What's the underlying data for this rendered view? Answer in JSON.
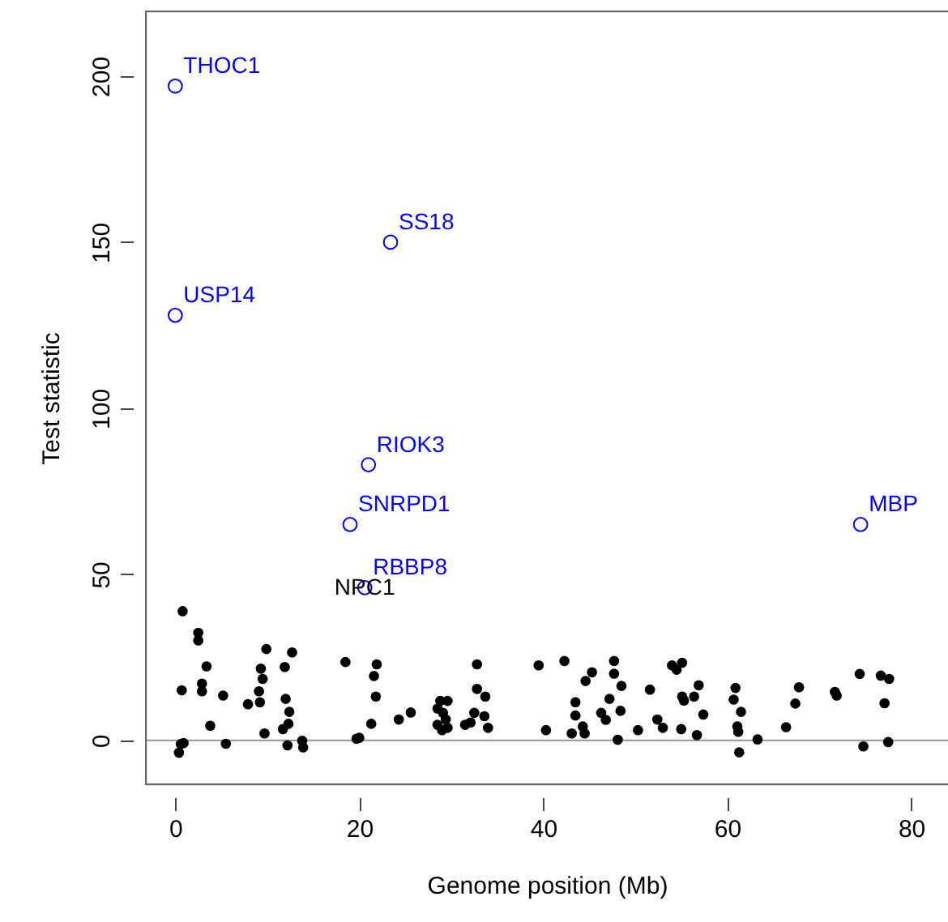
{
  "chart_data": {
    "type": "scatter",
    "xlabel": "Genome position (Mb)",
    "ylabel": "Test statistic",
    "xlim": [
      -3.2,
      84
    ],
    "ylim": [
      -13.2,
      219.5
    ],
    "xticks": [
      0,
      20,
      40,
      60,
      80
    ],
    "yticks": [
      0,
      50,
      100,
      150,
      200
    ],
    "grid": false,
    "marker": "circle",
    "ref_lines": [
      {
        "axis": "y",
        "value": 0,
        "color": "#a0a0a0"
      }
    ],
    "annotations": [
      {
        "text": "NPC1",
        "x": 20.6,
        "y": 45.9
      }
    ],
    "series": [
      {
        "color": "#000000",
        "x": [
          0.8,
          2.5,
          2.5,
          3.4,
          0.7,
          2.9,
          2.9,
          3.8,
          0.6,
          0.4,
          0.9,
          5.2,
          5.5,
          7.9,
          9.1,
          9.2,
          9.3,
          9.5,
          9.9,
          9.7,
          11.9,
          12.7,
          12.0,
          12.4,
          12.3,
          11.7,
          12.2,
          13.8,
          13.9,
          18.5,
          19.7,
          20.0,
          21.9,
          21.6,
          21.8,
          21.3,
          24.3,
          25.6,
          28.8,
          29.6,
          28.5,
          29.1,
          29.4,
          28.5,
          29.0,
          29.6,
          32.8,
          32.8,
          33.7,
          32.5,
          33.6,
          32.1,
          31.5,
          34.0,
          39.5,
          40.3,
          42.3,
          43.5,
          43.5,
          44.3,
          43.1,
          44.5,
          44.6,
          45.3,
          47.7,
          47.7,
          48.5,
          47.2,
          46.3,
          46.8,
          48.4,
          48.1,
          50.3,
          51.6,
          52.4,
          53.0,
          54.0,
          55.1,
          54.5,
          55.1,
          55.3,
          56.4,
          56.9,
          57.4,
          55.0,
          56.7,
          60.9,
          60.7,
          61.5,
          61.1,
          61.2,
          61.3,
          63.3,
          66.4,
          67.4,
          67.8,
          71.7,
          71.9,
          74.4,
          76.7,
          77.6,
          77.1,
          74.8,
          77.5
        ],
        "values": [
          38.9,
          32.4,
          30.1,
          22.3,
          15.1,
          17.1,
          14.8,
          4.4,
          -1.1,
          -3.7,
          -0.8,
          13.5,
          -1.0,
          10.9,
          14.8,
          11.5,
          21.6,
          18.5,
          27.5,
          2.1,
          22.1,
          26.5,
          12.5,
          8.6,
          5.0,
          3.4,
          -1.5,
          -0.1,
          -2.1,
          23.6,
          0.5,
          0.8,
          22.9,
          19.4,
          13.2,
          5.0,
          6.3,
          8.4,
          11.9,
          11.9,
          9.6,
          8.3,
          6.3,
          4.7,
          3.1,
          3.8,
          22.9,
          15.5,
          13.2,
          8.3,
          7.3,
          5.4,
          4.7,
          3.8,
          22.6,
          3.1,
          23.9,
          11.5,
          7.5,
          4.2,
          2.1,
          2.1,
          17.9,
          20.5,
          23.9,
          20.1,
          16.4,
          12.5,
          8.3,
          6.2,
          8.9,
          0.2,
          3.1,
          15.3,
          6.3,
          3.8,
          22.6,
          23.4,
          21.3,
          13.2,
          12.0,
          13.2,
          16.6,
          7.8,
          3.4,
          1.6,
          15.8,
          12.3,
          8.6,
          4.2,
          2.6,
          -3.6,
          0.3,
          4.0,
          11.1,
          16.0,
          14.6,
          13.5,
          20.0,
          19.5,
          18.5,
          11.2,
          -1.8,
          -0.5
        ]
      },
      {
        "color": "#0000ff",
        "x": [
          0,
          23.4,
          0,
          21,
          19,
          20.6,
          74.5
        ],
        "values": [
          197,
          150,
          128,
          83,
          65,
          46,
          65
        ],
        "value_labels": [
          "THOC1",
          "SS18",
          "USP14",
          "RIOK3",
          "SNRPD1",
          "RBBP8",
          "MBP"
        ]
      }
    ]
  }
}
